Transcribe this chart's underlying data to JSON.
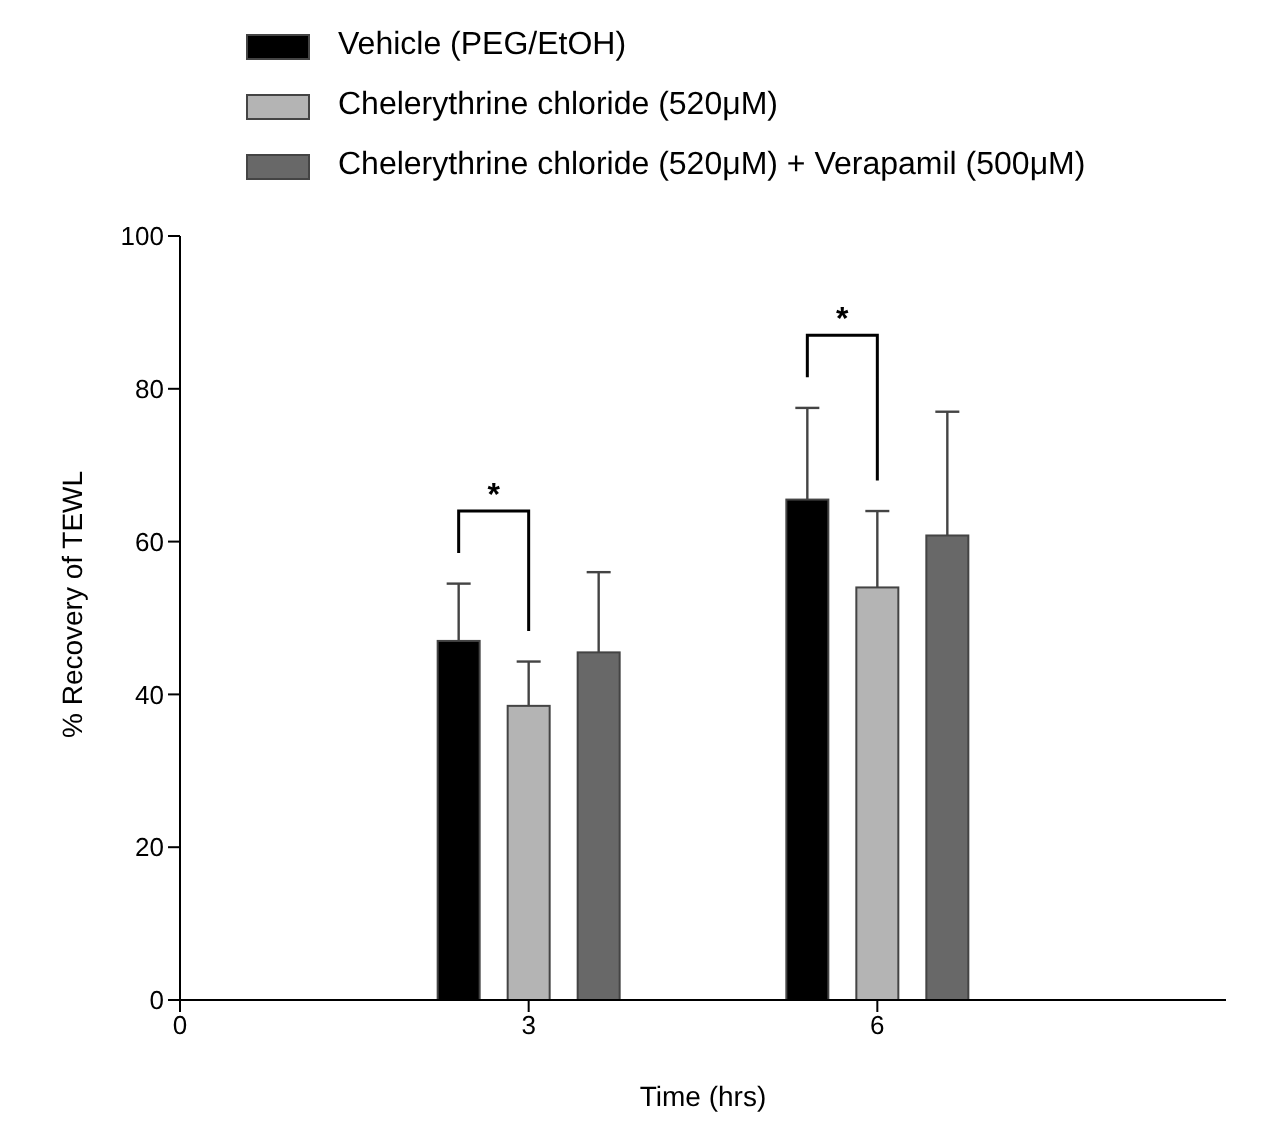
{
  "chart_data": {
    "type": "bar",
    "xlabel": "Time (hrs)",
    "ylabel": "% Recovery of TEWL",
    "x": [
      3,
      6
    ],
    "xlim": [
      0,
      9
    ],
    "xticks": [
      0,
      3,
      6
    ],
    "ylim": [
      0,
      100
    ],
    "yticks": [
      0,
      20,
      40,
      60,
      80,
      100
    ],
    "series": [
      {
        "name": "Vehicle (PEG/EtOH)",
        "color": "#000000",
        "values": [
          47,
          65.5
        ],
        "errors": [
          [
            47,
            54.5
          ],
          [
            65.5,
            77.5
          ]
        ]
      },
      {
        "name": "Chelerythrine chloride (520μM)",
        "color": "#b4b4b4",
        "values": [
          38.5,
          54
        ],
        "errors": [
          [
            38.5,
            44.3
          ],
          [
            54,
            64
          ]
        ]
      },
      {
        "name": "Chelerythrine chloride (520μM) + Verapamil (500μM)",
        "color": "#686868",
        "values": [
          45.5,
          60.8
        ],
        "errors": [
          [
            45.5,
            56
          ],
          [
            60.8,
            77
          ]
        ]
      }
    ],
    "annotations": [
      "*",
      "*"
    ],
    "legend": "top left",
    "grid": false
  }
}
